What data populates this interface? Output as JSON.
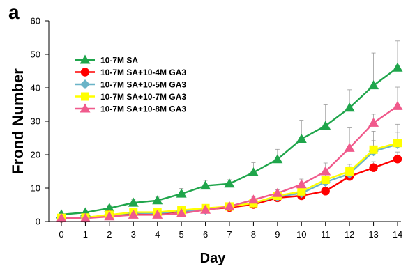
{
  "panel_label": "a",
  "chart_data": {
    "type": "line",
    "xlabel": "Day",
    "ylabel": "Frond Number",
    "x": [
      0,
      1,
      2,
      3,
      4,
      5,
      6,
      7,
      8,
      9,
      10,
      11,
      12,
      13,
      14
    ],
    "xlim": [
      0,
      14
    ],
    "ylim": [
      0,
      60
    ],
    "yticks": [
      0,
      10,
      20,
      30,
      40,
      50,
      60
    ],
    "legend_position": "upper-left",
    "grid": false,
    "series": [
      {
        "name": "10-7M SA",
        "color": "#1fa54b",
        "marker": "triangle",
        "values": [
          2.1,
          2.7,
          4.0,
          5.6,
          6.3,
          8.3,
          10.7,
          11.3,
          14.7,
          18.6,
          24.7,
          28.6,
          34.0,
          40.7,
          46.0
        ],
        "error": [
          0.4,
          0.5,
          0.8,
          0.9,
          1.0,
          1.6,
          1.6,
          1.2,
          2.9,
          3.0,
          5.6,
          6.3,
          5.4,
          9.7,
          8.0
        ]
      },
      {
        "name": "10-7M SA+10-4M GA3",
        "color": "#ff0000",
        "marker": "circle",
        "values": [
          1.0,
          1.0,
          2.1,
          2.3,
          2.3,
          3.0,
          3.6,
          4.2,
          5.1,
          7.1,
          7.7,
          9.1,
          13.5,
          16.1,
          18.7
        ],
        "error": [
          0.2,
          0.2,
          0.4,
          0.4,
          0.4,
          0.5,
          0.6,
          0.6,
          0.8,
          0.9,
          1.0,
          1.2,
          1.5,
          1.8,
          2.1
        ]
      },
      {
        "name": "10-7M SA+10-5M GA3",
        "color": "#6ab4c8",
        "marker": "diamond",
        "values": [
          1.0,
          1.0,
          2.0,
          2.6,
          2.5,
          3.1,
          3.5,
          4.5,
          5.6,
          7.4,
          8.5,
          11.8,
          14.3,
          21.0,
          23.1
        ],
        "error": [
          0.2,
          0.2,
          0.4,
          0.4,
          0.4,
          0.5,
          0.6,
          0.6,
          0.8,
          0.9,
          1.2,
          1.6,
          2.1,
          3.2,
          3.6
        ]
      },
      {
        "name": "10-7M SA+10-7M GA3",
        "color": "#ffff00",
        "marker": "square",
        "values": [
          1.1,
          1.2,
          2.0,
          2.8,
          2.8,
          3.4,
          4.0,
          4.5,
          5.5,
          7.7,
          9.0,
          12.5,
          15.0,
          21.5,
          23.5
        ],
        "error": [
          0.2,
          0.2,
          0.4,
          0.4,
          0.4,
          0.5,
          0.6,
          0.6,
          0.8,
          0.9,
          1.2,
          1.6,
          2.1,
          5.5,
          5.6
        ]
      },
      {
        "name": "10-7M SA+10-8M GA3",
        "color": "#f05a8c",
        "marker": "triangle",
        "values": [
          1.0,
          1.0,
          1.5,
          2.0,
          2.0,
          2.4,
          3.5,
          4.5,
          6.5,
          8.5,
          11.1,
          15.0,
          22.0,
          29.5,
          34.5
        ],
        "error": [
          0.2,
          0.2,
          0.3,
          0.4,
          0.4,
          0.5,
          0.6,
          0.7,
          0.8,
          1.0,
          1.6,
          2.5,
          6.0,
          2.6,
          5.7
        ]
      }
    ]
  }
}
